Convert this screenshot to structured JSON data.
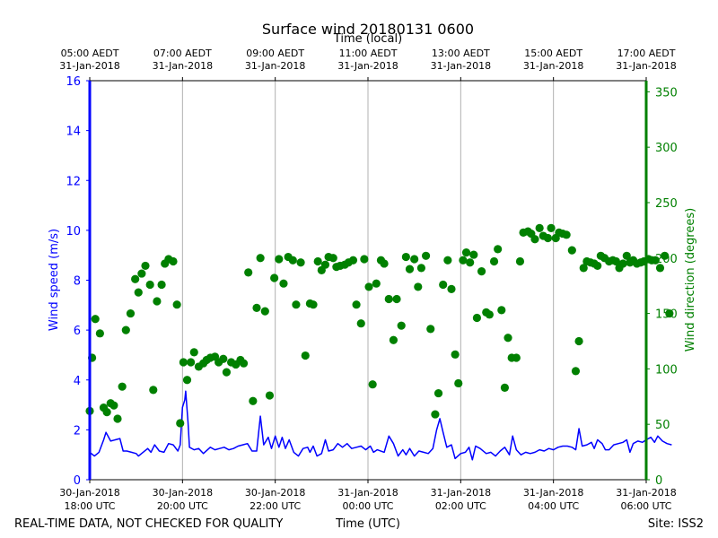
{
  "chart_data": {
    "type": "scatter",
    "title": "Surface wind 20180131 0600",
    "top_xlabel": "Time (local)",
    "xlabel": "Time (UTC)",
    "ylabel_left": "Wind speed (m/s)",
    "ylabel_right": "Wind direction (degrees)",
    "footer_left": "REAL-TIME DATA, NOT CHECKED FOR QUALITY",
    "footer_right": "Site: ISS2",
    "x_unit": "hours since 30-Jan-2018 18:00 UTC",
    "xlim": [
      0,
      12
    ],
    "ylim_left": [
      0,
      16
    ],
    "ylim_right": [
      0,
      360
    ],
    "left_ticks": [
      "0",
      "2",
      "4",
      "6",
      "8",
      "10",
      "12",
      "14",
      "16"
    ],
    "right_ticks": [
      "0",
      "50",
      "100",
      "150",
      "200",
      "250",
      "300",
      "350"
    ],
    "bottom_ticks": [
      {
        "x": 0,
        "line1": "30-Jan-2018",
        "line2": "18:00 UTC"
      },
      {
        "x": 2,
        "line1": "30-Jan-2018",
        "line2": "20:00 UTC"
      },
      {
        "x": 4,
        "line1": "30-Jan-2018",
        "line2": "22:00 UTC"
      },
      {
        "x": 6,
        "line1": "31-Jan-2018",
        "line2": "00:00 UTC"
      },
      {
        "x": 8,
        "line1": "31-Jan-2018",
        "line2": "02:00 UTC"
      },
      {
        "x": 10,
        "line1": "31-Jan-2018",
        "line2": "04:00 UTC"
      },
      {
        "x": 12,
        "line1": "31-Jan-2018",
        "line2": "06:00 UTC"
      }
    ],
    "top_ticks": [
      {
        "x": 0,
        "line1": "05:00 AEDT",
        "line2": "31-Jan-2018"
      },
      {
        "x": 2,
        "line1": "07:00 AEDT",
        "line2": "31-Jan-2018"
      },
      {
        "x": 4,
        "line1": "09:00 AEDT",
        "line2": "31-Jan-2018"
      },
      {
        "x": 6,
        "line1": "11:00 AEDT",
        "line2": "31-Jan-2018"
      },
      {
        "x": 8,
        "line1": "13:00 AEDT",
        "line2": "31-Jan-2018"
      },
      {
        "x": 10,
        "line1": "15:00 AEDT",
        "line2": "31-Jan-2018"
      },
      {
        "x": 12,
        "line1": "17:00 AEDT",
        "line2": "31-Jan-2018"
      }
    ],
    "series": [
      {
        "name": "Wind speed",
        "kind": "line",
        "axis": "left",
        "color": "#0000ff",
        "points": [
          [
            0,
            1.1
          ],
          [
            0.1,
            0.95
          ],
          [
            0.2,
            1.1
          ],
          [
            0.3,
            1.6
          ],
          [
            0.35,
            1.9
          ],
          [
            0.45,
            1.55
          ],
          [
            0.55,
            1.6
          ],
          [
            0.65,
            1.65
          ],
          [
            0.72,
            1.15
          ],
          [
            0.8,
            1.15
          ],
          [
            0.9,
            1.1
          ],
          [
            1.0,
            1.05
          ],
          [
            1.05,
            0.95
          ],
          [
            1.15,
            1.1
          ],
          [
            1.25,
            1.25
          ],
          [
            1.32,
            1.1
          ],
          [
            1.4,
            1.4
          ],
          [
            1.5,
            1.15
          ],
          [
            1.6,
            1.1
          ],
          [
            1.7,
            1.45
          ],
          [
            1.8,
            1.4
          ],
          [
            1.9,
            1.15
          ],
          [
            1.95,
            1.4
          ],
          [
            2.0,
            2.9
          ],
          [
            2.05,
            3.2
          ],
          [
            2.07,
            3.55
          ],
          [
            2.12,
            2.3
          ],
          [
            2.15,
            1.3
          ],
          [
            2.25,
            1.2
          ],
          [
            2.35,
            1.25
          ],
          [
            2.45,
            1.05
          ],
          [
            2.6,
            1.3
          ],
          [
            2.7,
            1.2
          ],
          [
            2.8,
            1.25
          ],
          [
            2.9,
            1.3
          ],
          [
            3.0,
            1.2
          ],
          [
            3.1,
            1.25
          ],
          [
            3.2,
            1.35
          ],
          [
            3.3,
            1.4
          ],
          [
            3.4,
            1.45
          ],
          [
            3.5,
            1.15
          ],
          [
            3.6,
            1.15
          ],
          [
            3.68,
            2.55
          ],
          [
            3.75,
            1.4
          ],
          [
            3.85,
            1.7
          ],
          [
            3.92,
            1.25
          ],
          [
            4.0,
            1.75
          ],
          [
            4.08,
            1.3
          ],
          [
            4.15,
            1.7
          ],
          [
            4.22,
            1.25
          ],
          [
            4.3,
            1.6
          ],
          [
            4.4,
            1.1
          ],
          [
            4.5,
            0.95
          ],
          [
            4.6,
            1.25
          ],
          [
            4.7,
            1.3
          ],
          [
            4.75,
            1.1
          ],
          [
            4.82,
            1.35
          ],
          [
            4.9,
            0.95
          ],
          [
            5.0,
            1.05
          ],
          [
            5.08,
            1.6
          ],
          [
            5.15,
            1.15
          ],
          [
            5.25,
            1.2
          ],
          [
            5.35,
            1.45
          ],
          [
            5.45,
            1.3
          ],
          [
            5.55,
            1.45
          ],
          [
            5.65,
            1.25
          ],
          [
            5.75,
            1.3
          ],
          [
            5.85,
            1.35
          ],
          [
            5.95,
            1.2
          ],
          [
            6.05,
            1.35
          ],
          [
            6.12,
            1.1
          ],
          [
            6.2,
            1.2
          ],
          [
            6.35,
            1.1
          ],
          [
            6.45,
            1.75
          ],
          [
            6.55,
            1.45
          ],
          [
            6.65,
            0.95
          ],
          [
            6.75,
            1.2
          ],
          [
            6.82,
            1.0
          ],
          [
            6.9,
            1.25
          ],
          [
            7.0,
            0.95
          ],
          [
            7.1,
            1.15
          ],
          [
            7.2,
            1.1
          ],
          [
            7.3,
            1.05
          ],
          [
            7.4,
            1.25
          ],
          [
            7.48,
            2.0
          ],
          [
            7.55,
            2.45
          ],
          [
            7.62,
            1.9
          ],
          [
            7.7,
            1.3
          ],
          [
            7.8,
            1.4
          ],
          [
            7.88,
            0.85
          ],
          [
            8.0,
            1.05
          ],
          [
            8.1,
            1.1
          ],
          [
            8.18,
            1.3
          ],
          [
            8.25,
            0.8
          ],
          [
            8.32,
            1.35
          ],
          [
            8.42,
            1.25
          ],
          [
            8.55,
            1.05
          ],
          [
            8.65,
            1.1
          ],
          [
            8.75,
            0.95
          ],
          [
            8.85,
            1.15
          ],
          [
            8.95,
            1.3
          ],
          [
            9.05,
            1.0
          ],
          [
            9.12,
            1.75
          ],
          [
            9.2,
            1.2
          ],
          [
            9.3,
            1.0
          ],
          [
            9.4,
            1.1
          ],
          [
            9.5,
            1.05
          ],
          [
            9.6,
            1.1
          ],
          [
            9.7,
            1.2
          ],
          [
            9.8,
            1.15
          ],
          [
            9.9,
            1.25
          ],
          [
            10.0,
            1.2
          ],
          [
            10.1,
            1.3
          ],
          [
            10.2,
            1.35
          ],
          [
            10.3,
            1.35
          ],
          [
            10.4,
            1.3
          ],
          [
            10.48,
            1.2
          ],
          [
            10.55,
            2.05
          ],
          [
            10.62,
            1.35
          ],
          [
            10.72,
            1.4
          ],
          [
            10.82,
            1.5
          ],
          [
            10.88,
            1.25
          ],
          [
            10.95,
            1.6
          ],
          [
            11.05,
            1.45
          ],
          [
            11.12,
            1.2
          ],
          [
            11.2,
            1.2
          ],
          [
            11.3,
            1.4
          ],
          [
            11.4,
            1.45
          ],
          [
            11.5,
            1.5
          ],
          [
            11.58,
            1.6
          ],
          [
            11.65,
            1.1
          ],
          [
            11.72,
            1.45
          ],
          [
            11.82,
            1.55
          ],
          [
            11.92,
            1.5
          ],
          [
            12.0,
            1.6
          ],
          [
            12.1,
            1.7
          ],
          [
            12.18,
            1.5
          ],
          [
            12.25,
            1.75
          ],
          [
            12.35,
            1.55
          ],
          [
            12.45,
            1.45
          ],
          [
            12.55,
            1.4
          ]
        ]
      },
      {
        "name": "Wind direction",
        "kind": "scatter",
        "axis": "right",
        "color": "#008000",
        "points": [
          [
            0,
            62
          ],
          [
            0.05,
            110
          ],
          [
            0.12,
            145
          ],
          [
            0.22,
            132
          ],
          [
            0.3,
            65
          ],
          [
            0.37,
            61
          ],
          [
            0.45,
            69
          ],
          [
            0.52,
            67
          ],
          [
            0.6,
            55
          ],
          [
            0.7,
            84
          ],
          [
            0.78,
            135
          ],
          [
            0.88,
            150
          ],
          [
            0.98,
            181
          ],
          [
            1.05,
            169
          ],
          [
            1.12,
            186
          ],
          [
            1.2,
            193
          ],
          [
            1.3,
            176
          ],
          [
            1.37,
            81
          ],
          [
            1.45,
            161
          ],
          [
            1.55,
            176
          ],
          [
            1.62,
            195
          ],
          [
            1.7,
            199
          ],
          [
            1.8,
            197
          ],
          [
            1.88,
            158
          ],
          [
            1.95,
            51
          ],
          [
            2.02,
            106
          ],
          [
            2.1,
            90
          ],
          [
            2.18,
            106
          ],
          [
            2.25,
            115
          ],
          [
            2.35,
            102
          ],
          [
            2.45,
            105
          ],
          [
            2.52,
            108
          ],
          [
            2.6,
            110
          ],
          [
            2.7,
            111
          ],
          [
            2.78,
            106
          ],
          [
            2.88,
            109
          ],
          [
            2.95,
            97
          ],
          [
            3.05,
            106
          ],
          [
            3.15,
            104
          ],
          [
            3.25,
            108
          ],
          [
            3.32,
            105
          ],
          [
            3.42,
            187
          ],
          [
            3.52,
            71
          ],
          [
            3.6,
            155
          ],
          [
            3.68,
            200
          ],
          [
            3.78,
            152
          ],
          [
            3.88,
            76
          ],
          [
            3.98,
            182
          ],
          [
            4.08,
            199
          ],
          [
            4.18,
            177
          ],
          [
            4.28,
            201
          ],
          [
            4.38,
            198
          ],
          [
            4.45,
            158
          ],
          [
            4.55,
            196
          ],
          [
            4.65,
            112
          ],
          [
            4.75,
            159
          ],
          [
            4.82,
            158
          ],
          [
            4.92,
            197
          ],
          [
            5.0,
            189
          ],
          [
            5.08,
            194
          ],
          [
            5.15,
            201
          ],
          [
            5.25,
            200
          ],
          [
            5.32,
            192
          ],
          [
            5.4,
            193
          ],
          [
            5.5,
            194
          ],
          [
            5.58,
            196
          ],
          [
            5.68,
            198
          ],
          [
            5.75,
            158
          ],
          [
            5.85,
            141
          ],
          [
            5.92,
            199
          ],
          [
            6.02,
            174
          ],
          [
            6.1,
            86
          ],
          [
            6.18,
            177
          ],
          [
            6.28,
            198
          ],
          [
            6.35,
            195
          ],
          [
            6.45,
            163
          ],
          [
            6.55,
            126
          ],
          [
            6.62,
            163
          ],
          [
            6.72,
            139
          ],
          [
            6.82,
            201
          ],
          [
            6.9,
            190
          ],
          [
            7.0,
            199
          ],
          [
            7.08,
            174
          ],
          [
            7.15,
            191
          ],
          [
            7.25,
            202
          ],
          [
            7.35,
            136
          ],
          [
            7.45,
            59
          ],
          [
            7.52,
            78
          ],
          [
            7.62,
            176
          ],
          [
            7.72,
            198
          ],
          [
            7.8,
            172
          ],
          [
            7.88,
            113
          ],
          [
            7.95,
            87
          ],
          [
            8.05,
            198
          ],
          [
            8.12,
            205
          ],
          [
            8.2,
            196
          ],
          [
            8.28,
            203
          ],
          [
            8.35,
            146
          ],
          [
            8.45,
            188
          ],
          [
            8.55,
            151
          ],
          [
            8.62,
            149
          ],
          [
            8.72,
            197
          ],
          [
            8.8,
            208
          ],
          [
            8.88,
            153
          ],
          [
            8.95,
            83
          ],
          [
            9.02,
            128
          ],
          [
            9.1,
            110
          ],
          [
            9.2,
            110
          ],
          [
            9.28,
            197
          ],
          [
            9.35,
            223
          ],
          [
            9.45,
            224
          ],
          [
            9.52,
            222
          ],
          [
            9.6,
            217
          ],
          [
            9.7,
            227
          ],
          [
            9.78,
            220
          ],
          [
            9.88,
            218
          ],
          [
            9.95,
            227
          ],
          [
            10.05,
            218
          ],
          [
            10.12,
            223
          ],
          [
            10.2,
            222
          ],
          [
            10.28,
            221
          ],
          [
            10.4,
            207
          ],
          [
            10.48,
            98
          ],
          [
            10.55,
            125
          ],
          [
            10.65,
            191
          ],
          [
            10.72,
            197
          ],
          [
            10.8,
            196
          ],
          [
            10.88,
            195
          ],
          [
            10.95,
            193
          ],
          [
            11.02,
            202
          ],
          [
            11.1,
            200
          ],
          [
            11.2,
            197
          ],
          [
            11.28,
            198
          ],
          [
            11.35,
            197
          ],
          [
            11.42,
            191
          ],
          [
            11.5,
            195
          ],
          [
            11.58,
            202
          ],
          [
            11.65,
            196
          ],
          [
            11.72,
            198
          ],
          [
            11.8,
            195
          ],
          [
            11.88,
            196
          ],
          [
            11.95,
            197
          ],
          [
            12.05,
            199
          ],
          [
            12.12,
            198
          ],
          [
            12.2,
            198
          ],
          [
            12.3,
            191
          ],
          [
            12.4,
            202
          ],
          [
            12.5,
            150
          ]
        ]
      }
    ]
  }
}
